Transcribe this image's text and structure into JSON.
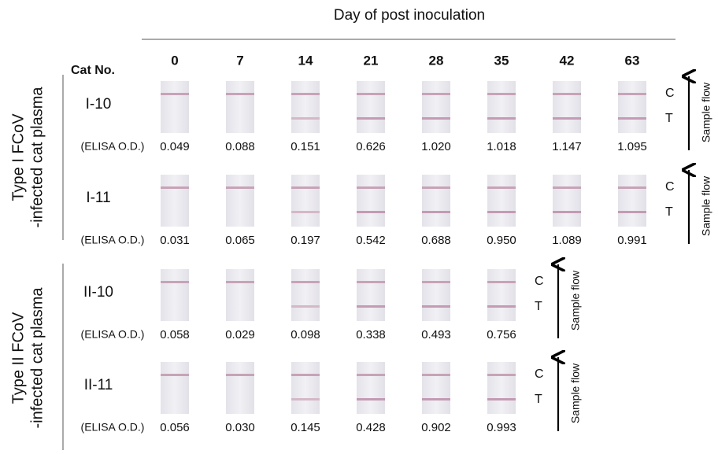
{
  "header": {
    "title": "Day of post inoculation",
    "cat_no_label": "Cat No.",
    "days": [
      0,
      7,
      14,
      21,
      28,
      35,
      42,
      63
    ]
  },
  "groups": [
    {
      "label_lines": [
        "Type I FCoV",
        "-infected cat plasma"
      ],
      "rows": [
        {
          "cat": "I-10",
          "measure_label": "(ELISA O.D.)",
          "values": [
            "0.049",
            "0.088",
            "0.151",
            "0.626",
            "1.020",
            "1.018",
            "1.147",
            "1.095"
          ],
          "control_label": "C",
          "test_label": "T",
          "flow_label": "Sample flow"
        },
        {
          "cat": "I-11",
          "measure_label": "(ELISA O.D.)",
          "values": [
            "0.031",
            "0.065",
            "0.197",
            "0.542",
            "0.688",
            "0.950",
            "1.089",
            "0.991"
          ],
          "control_label": "C",
          "test_label": "T",
          "flow_label": "Sample flow"
        }
      ]
    },
    {
      "label_lines": [
        "Type II FCoV",
        "-infected cat plasma"
      ],
      "rows": [
        {
          "cat": "II-10",
          "measure_label": "(ELISA O.D.)",
          "values": [
            "0.058",
            "0.029",
            "0.098",
            "0.338",
            "0.493",
            "0.756"
          ],
          "control_label": "C",
          "test_label": "T",
          "flow_label": "Sample flow"
        },
        {
          "cat": "II-11",
          "measure_label": "(ELISA O.D.)",
          "values": [
            "0.056",
            "0.030",
            "0.145",
            "0.428",
            "0.902",
            "0.993"
          ],
          "control_label": "C",
          "test_label": "T",
          "flow_label": "Sample flow"
        }
      ]
    }
  ]
}
